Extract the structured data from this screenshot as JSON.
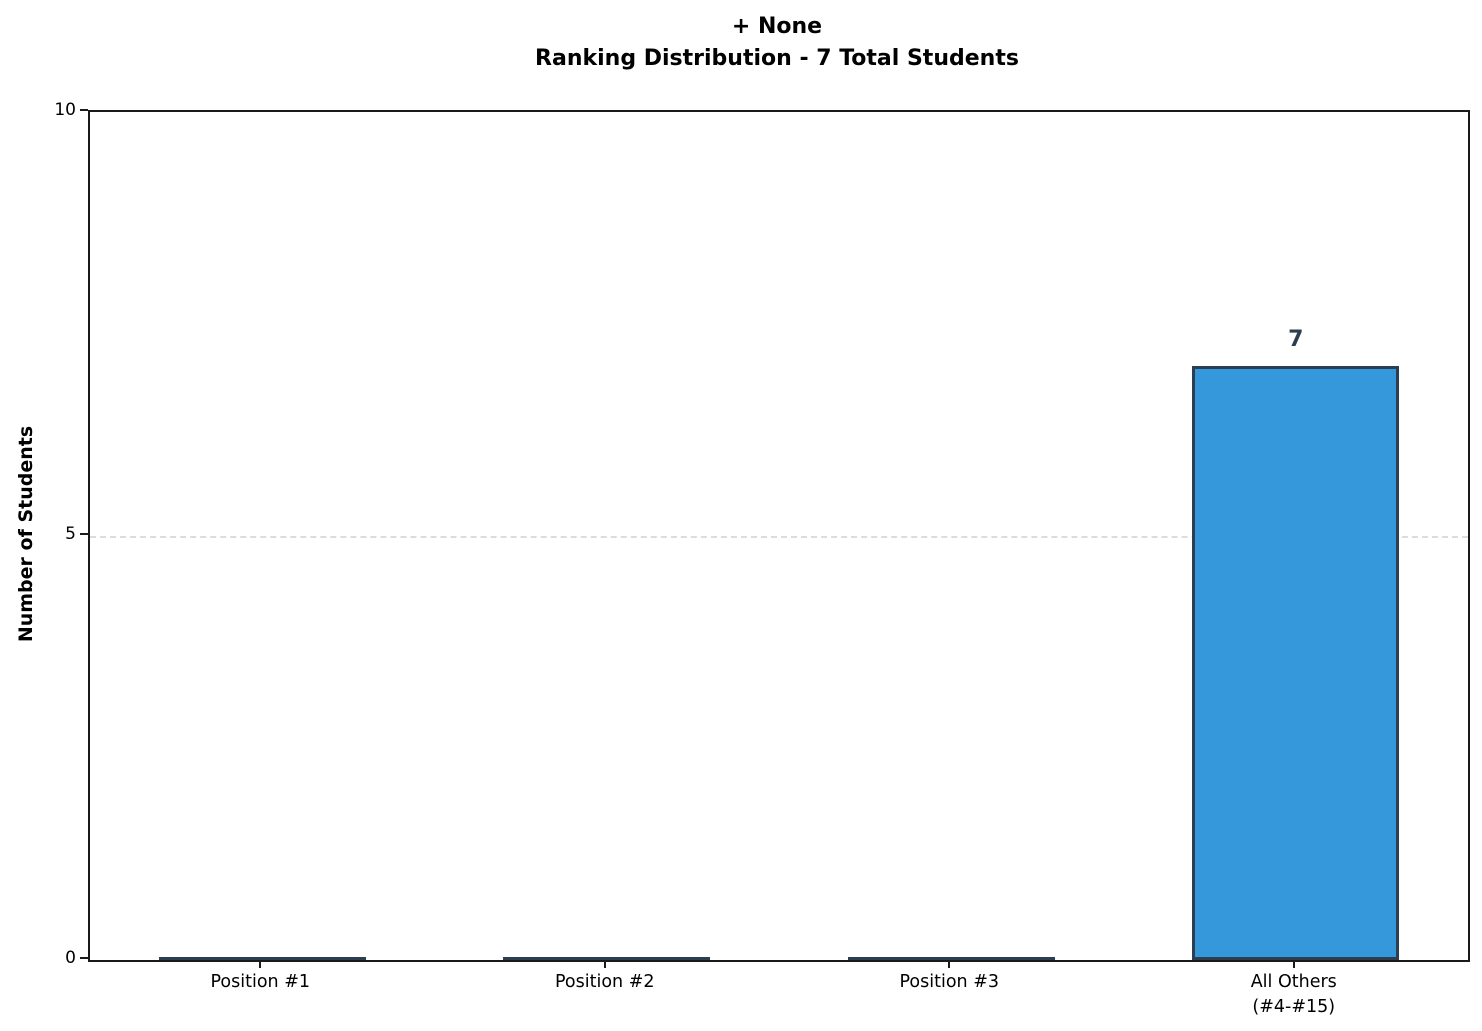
{
  "title": {
    "line1": "+ None",
    "line2": "Ranking Distribution - 7 Total Students"
  },
  "chart_data": {
    "type": "bar",
    "title": "+ None\nRanking Distribution - 7 Total Students",
    "categories": [
      "Position #1",
      "Position #2",
      "Position #3",
      "All Others\n(#4-#15)"
    ],
    "values": [
      0,
      0,
      0,
      7
    ],
    "value_labels": [
      "",
      "",
      "",
      "7"
    ],
    "xlabel": "",
    "ylabel": "Number of Students",
    "ylim": [
      0,
      10
    ],
    "yticks": [
      0,
      5,
      10
    ],
    "gridlines": [
      5
    ],
    "grid_style": "dashed",
    "legend": "none",
    "bar_width_ratio": 0.6,
    "colors": {
      "bar_fill": "#3498db",
      "bar_edge": "#2c3e50",
      "value_label": "#2c3e50",
      "grid": "#dcdcdc",
      "spine": "#1a1a1a",
      "text": "#000000",
      "background": "#ffffff"
    }
  }
}
